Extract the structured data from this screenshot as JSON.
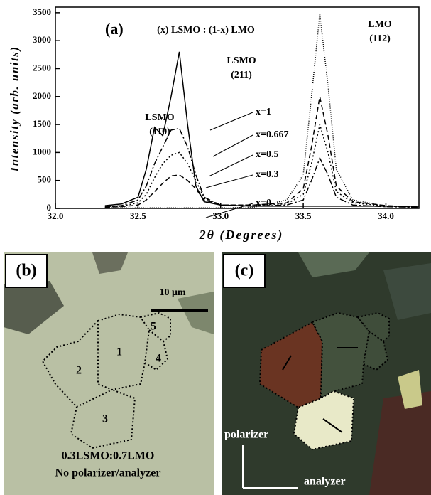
{
  "chart_data": {
    "type": "line",
    "panel_label": "(a)",
    "title": "(x) LSMO : (1-x) LMO",
    "x_label": "2θ (Degrees)",
    "y_label": "Intensity (arb. units)",
    "annotations": [
      [
        "LSMO",
        "(11̄0)"
      ],
      [
        "LSMO",
        "(211)"
      ],
      [
        "LMO",
        "(112)"
      ]
    ],
    "x": [
      32.3,
      32.4,
      32.5,
      32.55,
      32.6,
      32.65,
      32.7,
      32.75,
      32.8,
      32.85,
      32.9,
      33.0,
      33.2,
      33.4,
      33.5,
      33.55,
      33.6,
      33.65,
      33.7,
      33.8,
      34.0,
      34.2
    ],
    "series": [
      {
        "name": "x=1",
        "color": "#000000",
        "dash": "solid",
        "values": [
          50,
          80,
          200,
          700,
          1450,
          1300,
          2000,
          2800,
          1500,
          400,
          120,
          60,
          40,
          40,
          40,
          40,
          40,
          40,
          40,
          40,
          40,
          40
        ]
      },
      {
        "name": "x=0.667",
        "color": "#000000",
        "dash": "dashdot",
        "values": [
          30,
          50,
          150,
          400,
          800,
          1100,
          1400,
          1430,
          1100,
          600,
          200,
          60,
          40,
          60,
          150,
          500,
          900,
          600,
          200,
          60,
          30,
          20
        ]
      },
      {
        "name": "x=0.5",
        "color": "#000000",
        "dash": "dotted",
        "values": [
          20,
          40,
          100,
          250,
          550,
          800,
          950,
          1000,
          800,
          500,
          180,
          60,
          60,
          80,
          250,
          800,
          1500,
          1000,
          300,
          100,
          40,
          20
        ]
      },
      {
        "name": "x=0.3",
        "color": "#000000",
        "dash": "dashed",
        "values": [
          20,
          30,
          60,
          150,
          300,
          450,
          580,
          600,
          500,
          350,
          150,
          60,
          60,
          100,
          350,
          1100,
          2000,
          1300,
          400,
          120,
          50,
          20
        ]
      },
      {
        "name": "x=0",
        "color": "#000000",
        "dash": "fine-dotted",
        "values": [
          10,
          10,
          10,
          10,
          10,
          10,
          10,
          10,
          10,
          10,
          10,
          10,
          20,
          150,
          600,
          2000,
          3480,
          2200,
          700,
          150,
          40,
          20
        ]
      }
    ],
    "xlim": [
      32,
      34.2
    ],
    "xticks": [
      {
        "value": 32,
        "label": "32.0"
      },
      {
        "value": 32.5,
        "label": "32.5"
      },
      {
        "value": 33,
        "label": "33.0"
      },
      {
        "value": 33.5,
        "label": "33.5"
      },
      {
        "value": 34,
        "label": "34.0"
      }
    ],
    "ylim": [
      0,
      3600
    ],
    "yticks": [
      0,
      500,
      1000,
      1500,
      2000,
      2500,
      3000,
      3500
    ]
  },
  "panel_b": {
    "label": "(b)",
    "scale_bar": "10 μm",
    "grains": [
      "1",
      "2",
      "3",
      "4",
      "5"
    ],
    "caption": [
      "0.3LSMO:0.7LMO",
      "No polarizer/analyzer"
    ]
  },
  "panel_c": {
    "label": "(c)",
    "polarizer": "polarizer",
    "analyzer": "analyzer"
  }
}
